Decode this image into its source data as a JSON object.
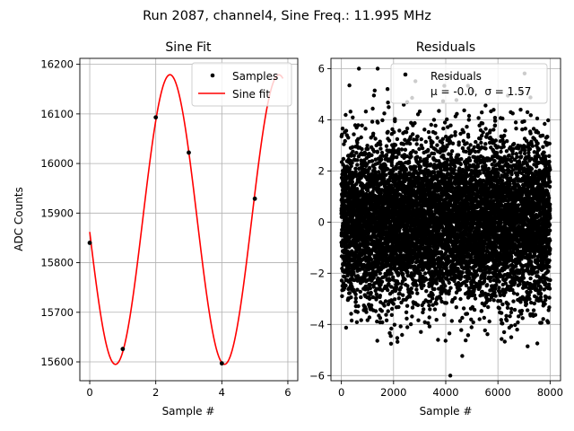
{
  "suptitle": "Run 2087, channel4, Sine Freq.: 11.995 MHz",
  "chart_data": [
    {
      "type": "line",
      "title": "Sine Fit",
      "xlabel": "Sample #",
      "ylabel": "ADC Counts",
      "xlim": [
        -0.3,
        6.3
      ],
      "ylim": [
        15562,
        16212
      ],
      "xticks": [
        0,
        2,
        4,
        6
      ],
      "xtick_labels": [
        "0",
        "2",
        "4",
        "6"
      ],
      "yticks": [
        15600,
        15700,
        15800,
        15900,
        16000,
        16100,
        16200
      ],
      "ytick_labels": [
        "15600",
        "15700",
        "15800",
        "15900",
        "16000",
        "16100",
        "16200"
      ],
      "grid": true,
      "legend_position": "top-right",
      "series": [
        {
          "name": "Samples",
          "kind": "scatter",
          "color": "#000000",
          "x": [
            0,
            1,
            2,
            3,
            4,
            5
          ],
          "y": [
            15840,
            15626,
            16093,
            16022,
            15597,
            15929
          ]
        },
        {
          "name": "Sine fit",
          "kind": "line",
          "color": "#ff0000",
          "fit": {
            "offset": 15887,
            "amplitude": 292,
            "period": 3.3,
            "phase_ref_x": 2.43
          },
          "x_range": [
            0,
            5.85
          ]
        }
      ]
    },
    {
      "type": "scatter",
      "title": "Residuals",
      "xlabel": "Sample #",
      "ylabel": "",
      "xlim": [
        -400,
        8400
      ],
      "ylim": [
        -6.2,
        6.4
      ],
      "xticks": [
        0,
        2000,
        4000,
        6000,
        8000
      ],
      "xtick_labels": [
        "0",
        "2000",
        "4000",
        "6000",
        "8000"
      ],
      "yticks": [
        -6,
        -4,
        -2,
        0,
        2,
        4,
        6
      ],
      "ytick_labels": [
        "−6",
        "−4",
        "−2",
        "0",
        "2",
        "4",
        "6"
      ],
      "grid": true,
      "legend_position": "top-right",
      "series": [
        {
          "name": "Residuals",
          "kind": "scatter",
          "color": "#000000",
          "n_points": 8000,
          "mean": 0.0,
          "sigma": 1.57,
          "x_range": [
            0,
            8000
          ]
        }
      ],
      "legend_stats": {
        "mu_label": "μ = -0.0,",
        "sigma_label": "σ = 1.57"
      }
    }
  ]
}
